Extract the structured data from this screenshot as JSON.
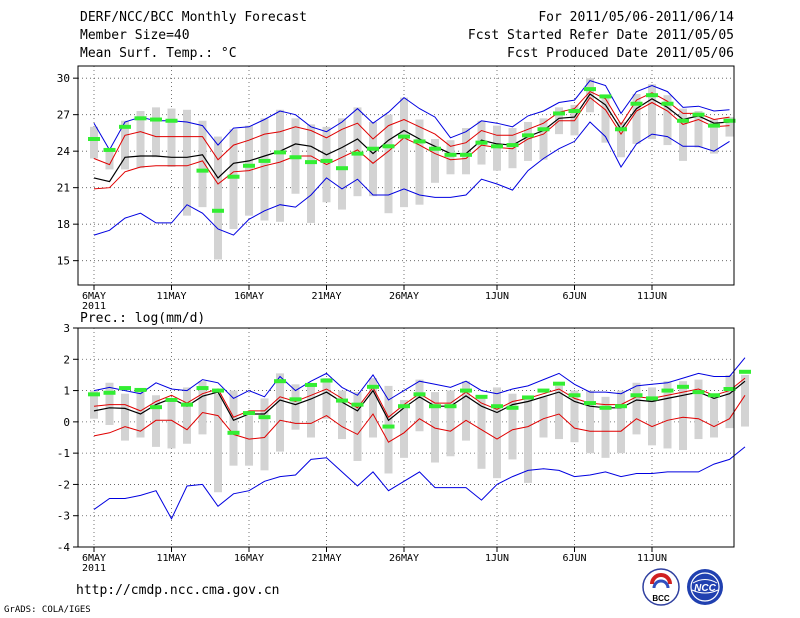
{
  "header": {
    "title": "DERF/NCC/BCC Monthly Forecast",
    "member_size": "Member Size=40",
    "variable": "Mean Surf. Temp.: °C",
    "period": "For 2011/05/06-2011/06/14",
    "fcst_started": "Fcst Started Refer Date 2011/05/05",
    "fcst_produced": "Fcst Produced Date 2011/05/06"
  },
  "footer": {
    "url": "http://cmdp.ncc.cma.gov.cn",
    "grads": "GrADS: COLA/IGES",
    "logo_bcc": "BCC",
    "logo_ncc": "NCC"
  },
  "colors": {
    "mean": "#000000",
    "spread_inner": "#e00000",
    "spread_outer": "#0000e0",
    "box": "#d3d3d3",
    "marker": "#33ee33",
    "grid": "#555555"
  },
  "chart_data": [
    {
      "type": "box-ensemble-line",
      "title": "Mean Surf. Temp.: °C",
      "ylabel": "°C",
      "ylim": [
        13,
        31
      ],
      "yticks": [
        15,
        18,
        21,
        24,
        27,
        30
      ],
      "xtick_labels": [
        {
          "day": 0,
          "label": "6MAY",
          "sub": "2011"
        },
        {
          "day": 5,
          "label": "11MAY"
        },
        {
          "day": 10,
          "label": "16MAY"
        },
        {
          "day": 15,
          "label": "21MAY"
        },
        {
          "day": 20,
          "label": "26MAY"
        },
        {
          "day": 26,
          "label": "1JUN"
        },
        {
          "day": 31,
          "label": "6JUN"
        },
        {
          "day": 36,
          "label": "11JUN"
        }
      ],
      "mean": [
        21.8,
        21.5,
        23.5,
        23.6,
        23.6,
        23.5,
        23.5,
        23.7,
        21.8,
        23.0,
        23.2,
        23.6,
        24.0,
        24.6,
        24.4,
        23.7,
        24.3,
        25.0,
        23.8,
        24.9,
        25.7,
        25.0,
        24.4,
        23.8,
        23.8,
        24.9,
        24.6,
        24.5,
        25.2,
        25.7,
        26.7,
        26.8,
        28.7,
        27.8,
        25.8,
        27.5,
        28.3,
        27.6,
        26.6,
        26.9,
        26.3,
        26.4
      ],
      "upper_inner": [
        23.4,
        22.9,
        25.3,
        25.6,
        25.2,
        25.2,
        25.2,
        25.2,
        23.3,
        24.5,
        24.9,
        25.4,
        25.6,
        26.0,
        25.7,
        25.1,
        25.8,
        26.3,
        25.0,
        26.1,
        26.6,
        26.0,
        25.4,
        24.4,
        24.7,
        25.7,
        25.3,
        25.3,
        25.8,
        26.3,
        27.2,
        27.5,
        28.9,
        28.3,
        26.2,
        28.2,
        28.8,
        28.1,
        27.1,
        27.1,
        26.6,
        26.8
      ],
      "lower_inner": [
        20.9,
        21.0,
        22.3,
        22.7,
        22.8,
        22.8,
        22.8,
        23.2,
        21.3,
        22.3,
        22.4,
        22.8,
        23.1,
        23.6,
        23.6,
        22.9,
        23.5,
        24.1,
        23.0,
        24.0,
        25.1,
        24.5,
        23.8,
        23.3,
        23.4,
        24.5,
        24.3,
        24.2,
        25.0,
        25.4,
        26.5,
        26.5,
        28.4,
        27.4,
        25.4,
        27.3,
        28.0,
        27.3,
        26.2,
        26.6,
        26.0,
        26.1
      ],
      "upper_outer": [
        26.3,
        24.1,
        26.4,
        26.8,
        26.5,
        26.5,
        26.4,
        26.1,
        24.5,
        25.9,
        26.0,
        26.6,
        27.3,
        27.0,
        26.0,
        25.6,
        26.4,
        27.5,
        26.3,
        27.2,
        28.4,
        27.5,
        26.8,
        25.1,
        25.6,
        26.5,
        26.3,
        26.0,
        26.9,
        27.3,
        28.0,
        28.2,
        29.8,
        29.4,
        27.1,
        28.9,
        29.4,
        28.9,
        27.6,
        27.7,
        27.3,
        27.4
      ],
      "lower_outer": [
        17.1,
        17.5,
        18.5,
        18.9,
        18.1,
        18.1,
        19.6,
        18.9,
        17.6,
        17.1,
        18.4,
        19.1,
        19.6,
        19.4,
        20.4,
        21.8,
        20.9,
        21.7,
        20.4,
        20.4,
        20.9,
        20.4,
        20.2,
        20.2,
        20.4,
        21.7,
        21.3,
        20.8,
        22.4,
        23.4,
        24.2,
        24.8,
        26.4,
        25.2,
        22.7,
        24.6,
        25.4,
        25.2,
        24.4,
        24.4,
        24.0,
        24.8
      ],
      "box_top": [
        26.0,
        24.2,
        26.5,
        27.3,
        27.6,
        27.5,
        27.4,
        26.5,
        25.2,
        25.8,
        26.1,
        26.7,
        27.4,
        26.7,
        26.2,
        26.0,
        26.7,
        27.6,
        26.4,
        27.0,
        28.4,
        26.6,
        25.0,
        24.9,
        25.9,
        26.5,
        26.1,
        25.9,
        26.4,
        26.7,
        27.6,
        27.8,
        30.0,
        28.6,
        26.4,
        28.7,
        29.5,
        28.6,
        27.5,
        27.3,
        26.6,
        26.8
      ],
      "box_bottom": [
        23.4,
        22.5,
        22.5,
        22.6,
        23.5,
        22.7,
        18.7,
        19.4,
        15.1,
        17.6,
        18.7,
        18.3,
        18.2,
        20.5,
        18.1,
        19.8,
        19.2,
        20.3,
        20.3,
        18.9,
        19.4,
        19.6,
        21.4,
        22.1,
        22.1,
        22.9,
        22.4,
        22.6,
        23.2,
        23.3,
        25.4,
        25.3,
        27.2,
        24.7,
        23.5,
        24.6,
        25.0,
        24.5,
        23.2,
        24.3,
        23.8,
        25.2
      ],
      "observed": [
        25.0,
        24.1,
        26.0,
        26.7,
        26.6,
        26.5,
        null,
        22.4,
        19.1,
        21.9,
        22.8,
        23.2,
        23.9,
        23.5,
        23.1,
        23.2,
        22.6,
        23.8,
        24.2,
        24.4,
        25.2,
        24.8,
        24.2,
        23.7,
        23.7,
        24.7,
        24.4,
        24.5,
        25.3,
        25.8,
        27.1,
        27.3,
        29.1,
        28.5,
        25.8,
        27.9,
        28.6,
        27.9,
        26.5,
        27.0,
        26.1,
        26.5
      ]
    },
    {
      "type": "box-ensemble-line",
      "title": "Prec.: log(mm/d)",
      "ylabel": "log(mm/d)",
      "ylim": [
        -4,
        3
      ],
      "yticks": [
        -4,
        -3,
        -2,
        -1,
        0,
        1,
        2,
        3
      ],
      "xtick_labels": [
        {
          "day": 0,
          "label": "6MAY",
          "sub": "2011"
        },
        {
          "day": 5,
          "label": "11MAY"
        },
        {
          "day": 10,
          "label": "16MAY"
        },
        {
          "day": 15,
          "label": "21MAY"
        },
        {
          "day": 20,
          "label": "26MAY"
        },
        {
          "day": 26,
          "label": "1JUN"
        },
        {
          "day": 31,
          "label": "6JUN"
        },
        {
          "day": 36,
          "label": "11JUN"
        }
      ],
      "mean": [
        0.35,
        0.45,
        0.43,
        0.25,
        0.55,
        0.75,
        0.5,
        0.82,
        0.95,
        0.05,
        0.25,
        0.25,
        0.7,
        0.55,
        0.73,
        0.95,
        0.63,
        0.35,
        1.0,
        0.05,
        0.45,
        0.8,
        0.5,
        0.5,
        0.83,
        0.5,
        0.3,
        0.55,
        0.65,
        0.8,
        0.95,
        0.65,
        0.5,
        0.45,
        0.45,
        0.7,
        0.65,
        0.75,
        0.85,
        0.95,
        0.75,
        0.9,
        1.3
      ],
      "upper_inner": [
        0.5,
        0.55,
        0.55,
        0.35,
        0.65,
        0.85,
        0.6,
        0.9,
        1.05,
        0.15,
        0.35,
        0.35,
        0.8,
        0.65,
        0.85,
        1.05,
        0.75,
        0.45,
        1.1,
        0.15,
        0.55,
        0.9,
        0.6,
        0.6,
        0.95,
        0.6,
        0.4,
        0.65,
        0.75,
        0.9,
        1.05,
        0.75,
        0.6,
        0.55,
        0.55,
        0.8,
        0.75,
        0.85,
        0.95,
        1.05,
        0.85,
        1.0,
        1.4
      ],
      "lower_inner": [
        -0.45,
        -0.35,
        -0.15,
        -0.3,
        0.05,
        0.05,
        -0.25,
        0.3,
        0.2,
        -0.4,
        -0.55,
        -0.5,
        0.05,
        -0.05,
        -0.05,
        0.2,
        -0.15,
        -0.4,
        0.25,
        -0.65,
        -0.35,
        0.1,
        -0.2,
        -0.3,
        0.05,
        -0.25,
        -0.55,
        -0.25,
        -0.15,
        0.1,
        0.25,
        -0.2,
        -0.3,
        -0.3,
        -0.3,
        0.1,
        -0.15,
        0.05,
        0.15,
        0.1,
        -0.15,
        0.1,
        0.85
      ],
      "upper_outer": [
        1.0,
        1.1,
        1.0,
        0.9,
        1.25,
        1.05,
        1.0,
        1.35,
        1.25,
        0.75,
        1.0,
        0.8,
        1.45,
        1.0,
        1.3,
        1.55,
        1.1,
        0.85,
        1.5,
        0.7,
        1.0,
        1.3,
        1.2,
        1.1,
        1.3,
        1.0,
        0.9,
        1.05,
        1.15,
        1.35,
        1.55,
        1.2,
        0.95,
        0.95,
        0.9,
        1.15,
        1.2,
        1.25,
        1.4,
        1.55,
        1.45,
        1.45,
        2.05
      ],
      "lower_outer": [
        -2.8,
        -2.45,
        -2.45,
        -2.35,
        -2.2,
        -3.1,
        -2.05,
        -2.0,
        -2.7,
        -2.3,
        -2.2,
        -1.9,
        -1.75,
        -1.7,
        -1.2,
        -1.15,
        -1.6,
        -2.05,
        -1.6,
        -2.2,
        -1.9,
        -1.6,
        -2.1,
        -2.1,
        -2.1,
        -2.5,
        -2.0,
        -1.75,
        -1.55,
        -1.5,
        -1.55,
        -1.75,
        -1.7,
        -1.6,
        -1.75,
        -1.65,
        -1.65,
        -1.6,
        -1.6,
        -1.6,
        -1.35,
        -1.2,
        -0.8
      ],
      "box_top": [
        1.0,
        1.25,
        0.9,
        1.0,
        0.85,
        0.75,
        1.1,
        1.3,
        0.9,
        1.0,
        0.2,
        0.75,
        1.55,
        1.2,
        1.2,
        1.4,
        1.0,
        0.95,
        1.4,
        1.15,
        0.7,
        1.35,
        0.95,
        1.0,
        1.3,
        0.75,
        1.1,
        0.9,
        0.8,
        0.8,
        1.15,
        1.0,
        1.0,
        0.8,
        1.0,
        1.25,
        1.1,
        1.3,
        1.3,
        1.35,
        0.75,
        1.5,
        1.5
      ],
      "box_bottom": [
        0.1,
        -0.1,
        -0.6,
        -0.5,
        -0.8,
        -0.85,
        -0.7,
        -0.4,
        -2.25,
        -1.4,
        -1.4,
        -1.55,
        -0.95,
        -0.25,
        -0.5,
        0.1,
        -0.55,
        -1.25,
        -0.5,
        -1.65,
        -1.15,
        -0.3,
        -1.3,
        -1.1,
        -0.6,
        -1.5,
        -1.8,
        -1.2,
        -1.95,
        -0.5,
        -0.55,
        -0.65,
        -1.0,
        -1.15,
        -1.0,
        -0.4,
        -0.75,
        -0.85,
        -0.9,
        -0.55,
        -0.5,
        -0.2,
        -0.15
      ],
      "observed": [
        0.88,
        0.93,
        1.08,
        1.02,
        0.47,
        0.7,
        0.55,
        1.08,
        1.0,
        -0.35,
        0.28,
        0.15,
        1.3,
        0.72,
        1.18,
        1.32,
        0.68,
        0.55,
        1.12,
        -0.15,
        0.5,
        0.88,
        0.5,
        0.5,
        1.0,
        0.8,
        0.5,
        0.45,
        0.78,
        1.0,
        1.22,
        0.85,
        0.6,
        0.45,
        0.5,
        0.85,
        0.75,
        1.0,
        1.12,
        0.95,
        0.85,
        1.05,
        1.6
      ]
    }
  ]
}
